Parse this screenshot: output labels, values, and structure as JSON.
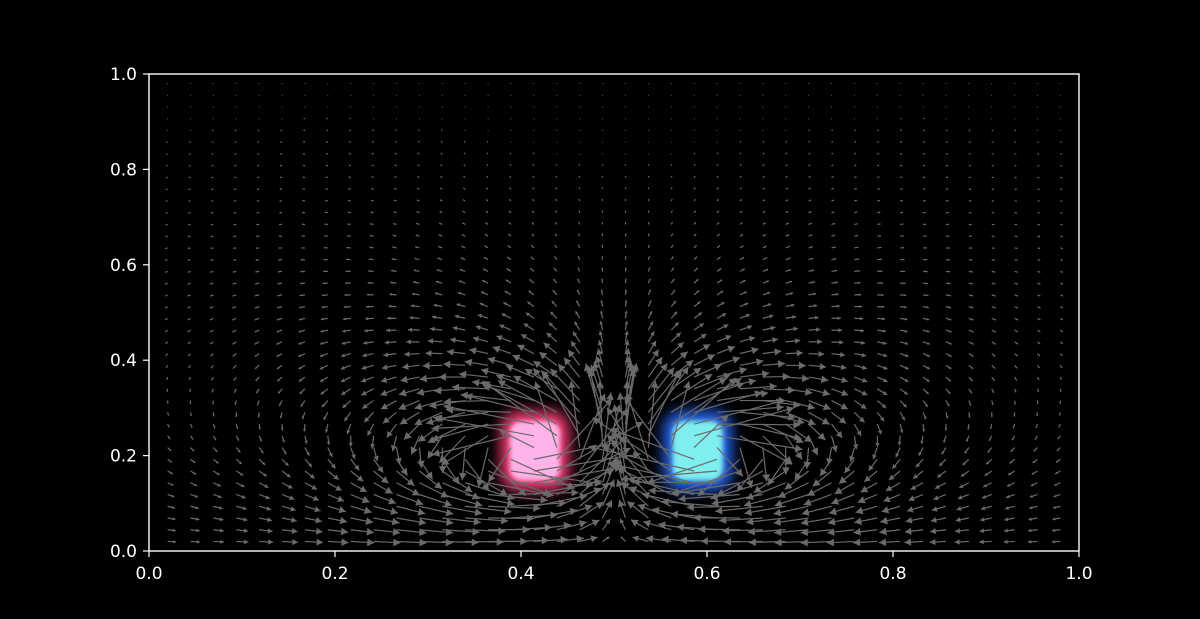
{
  "chart_data": {
    "type": "quiver",
    "title": "",
    "xlabel": "",
    "ylabel": "",
    "xlim": [
      0.0,
      1.0
    ],
    "ylim": [
      0.0,
      1.0
    ],
    "x_ticks": [
      "0.0",
      "0.2",
      "0.4",
      "0.6",
      "0.8",
      "1.0"
    ],
    "y_ticks": [
      "0.0",
      "0.2",
      "0.4",
      "0.6",
      "0.8",
      "1.0"
    ],
    "grid": false,
    "background": "#000000",
    "arrow_color": "#6a6a6a",
    "field": {
      "x_range": [
        0.02,
        0.98
      ],
      "y_range": [
        0.02,
        0.98
      ],
      "columns": 40,
      "rows": 40
    },
    "objects": [
      {
        "name": "",
        "shape": "rounded-rect",
        "center": [
          0.415,
          0.21
        ],
        "size": [
          0.065,
          0.15
        ],
        "fill": "#ffb3e8",
        "glow": "#ff3f7a"
      },
      {
        "name": "",
        "shape": "rounded-rect",
        "center": [
          0.59,
          0.21
        ],
        "size": [
          0.065,
          0.15
        ],
        "fill": "#7eeeee",
        "glow": "#2a6cff"
      }
    ]
  }
}
